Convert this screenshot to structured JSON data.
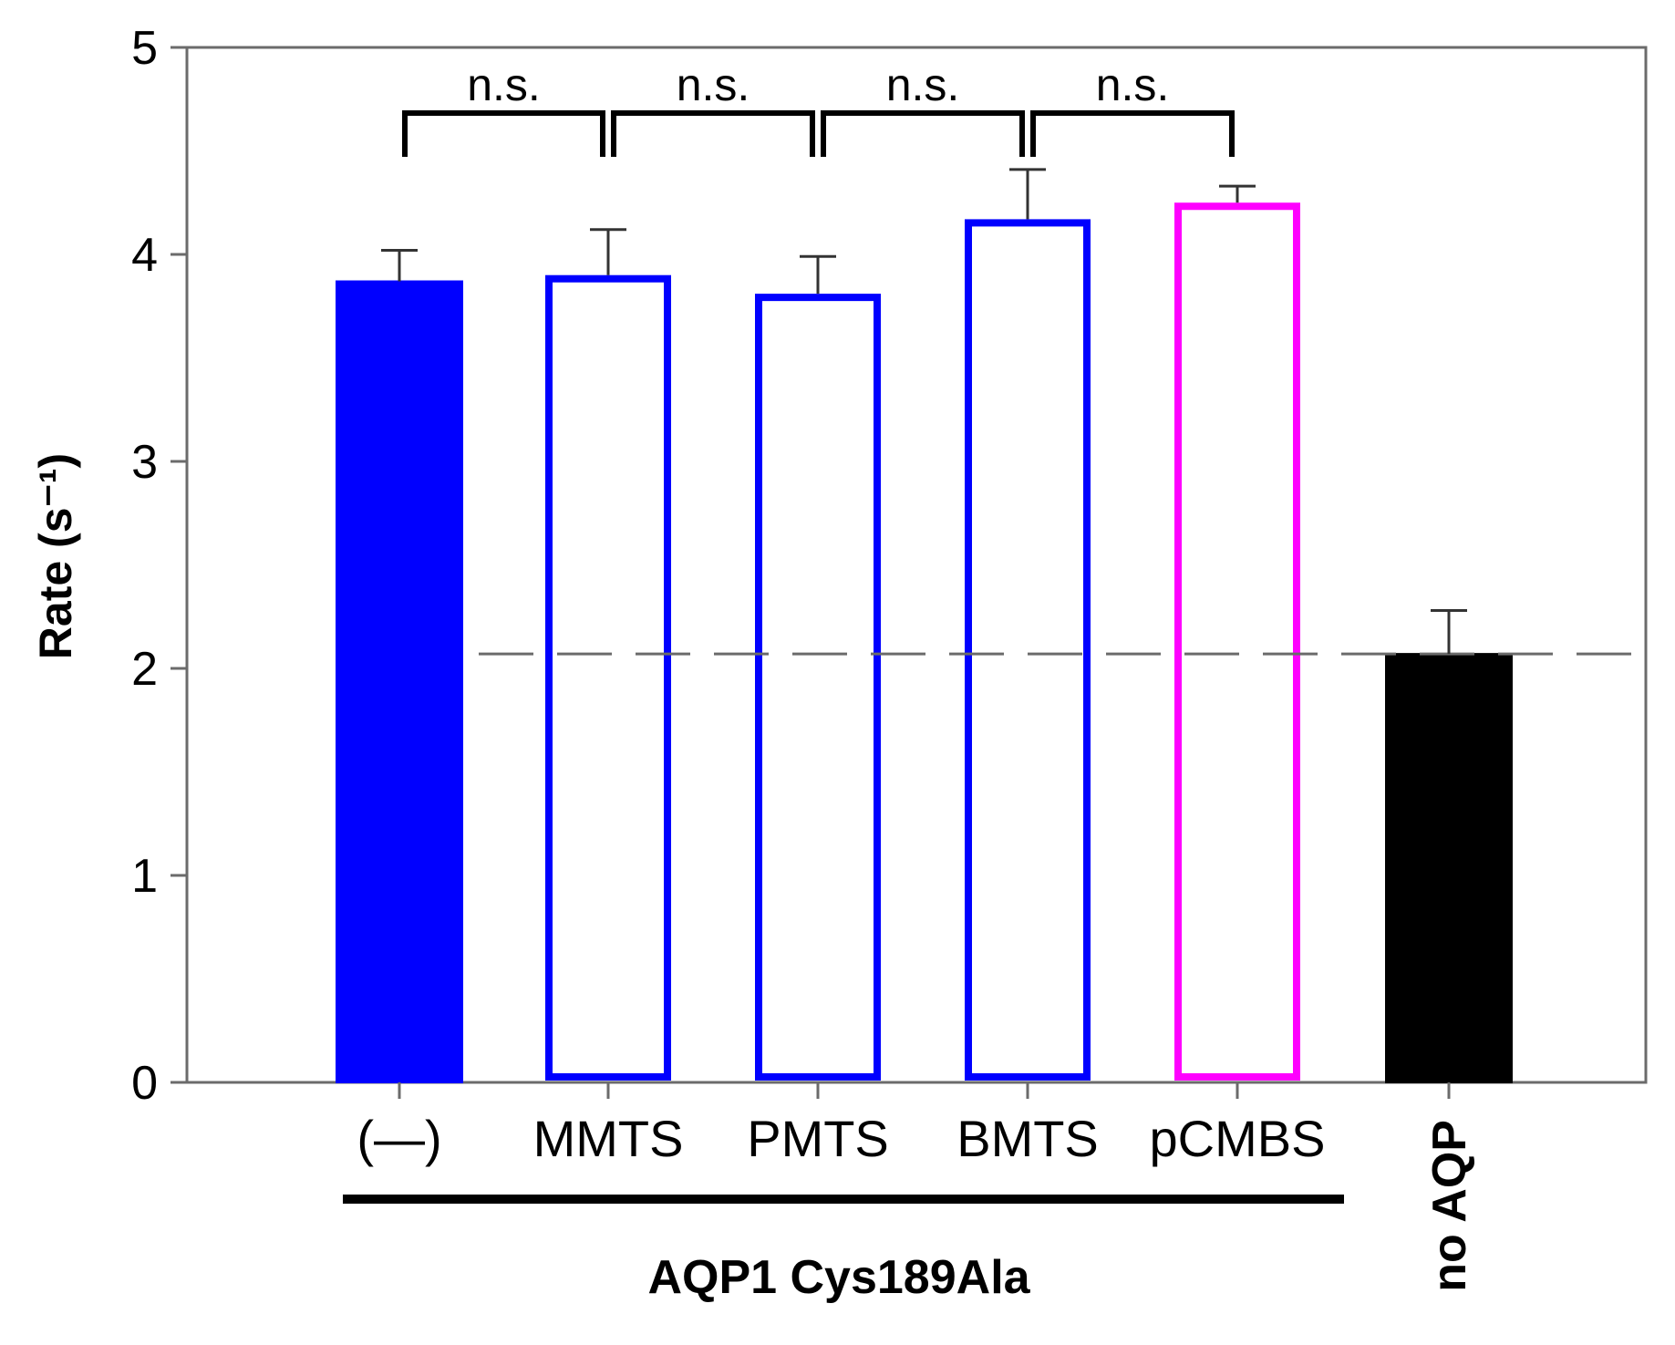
{
  "chart_data": {
    "type": "bar",
    "title": "",
    "xlabel": "",
    "ylabel": "Rate (s⁻¹)",
    "ylim": [
      0,
      5
    ],
    "yticks": [
      "0",
      "1",
      "2",
      "3",
      "4",
      "5"
    ],
    "grid": false,
    "categories": [
      "(—)",
      "MMTS",
      "PMTS",
      "BMTS",
      "pCMBS",
      "no AQP"
    ],
    "values": [
      3.87,
      3.9,
      3.81,
      4.17,
      4.25,
      2.07
    ],
    "errors": [
      0.15,
      0.22,
      0.18,
      0.24,
      0.08,
      0.21
    ],
    "bar_styles": [
      {
        "fill": "#0000ff",
        "stroke": "#0000ff"
      },
      {
        "fill": "#ffffff",
        "stroke": "#0000ff"
      },
      {
        "fill": "#ffffff",
        "stroke": "#0000ff"
      },
      {
        "fill": "#ffffff",
        "stroke": "#0000ff"
      },
      {
        "fill": "#ffffff",
        "stroke": "#ff00ff"
      },
      {
        "fill": "#000000",
        "stroke": "#000000"
      }
    ],
    "reference_line": {
      "value": 2.07,
      "style": "dashed"
    },
    "group_label": "AQP1 Cys189Ala",
    "group_members": [
      "(—)",
      "MMTS",
      "PMTS",
      "BMTS",
      "pCMBS"
    ],
    "significance": [
      {
        "from": "(—)",
        "to": "MMTS",
        "label": "n.s."
      },
      {
        "from": "MMTS",
        "to": "PMTS",
        "label": "n.s."
      },
      {
        "from": "PMTS",
        "to": "BMTS",
        "label": "n.s."
      },
      {
        "from": "BMTS",
        "to": "pCMBS",
        "label": "n.s."
      }
    ]
  }
}
